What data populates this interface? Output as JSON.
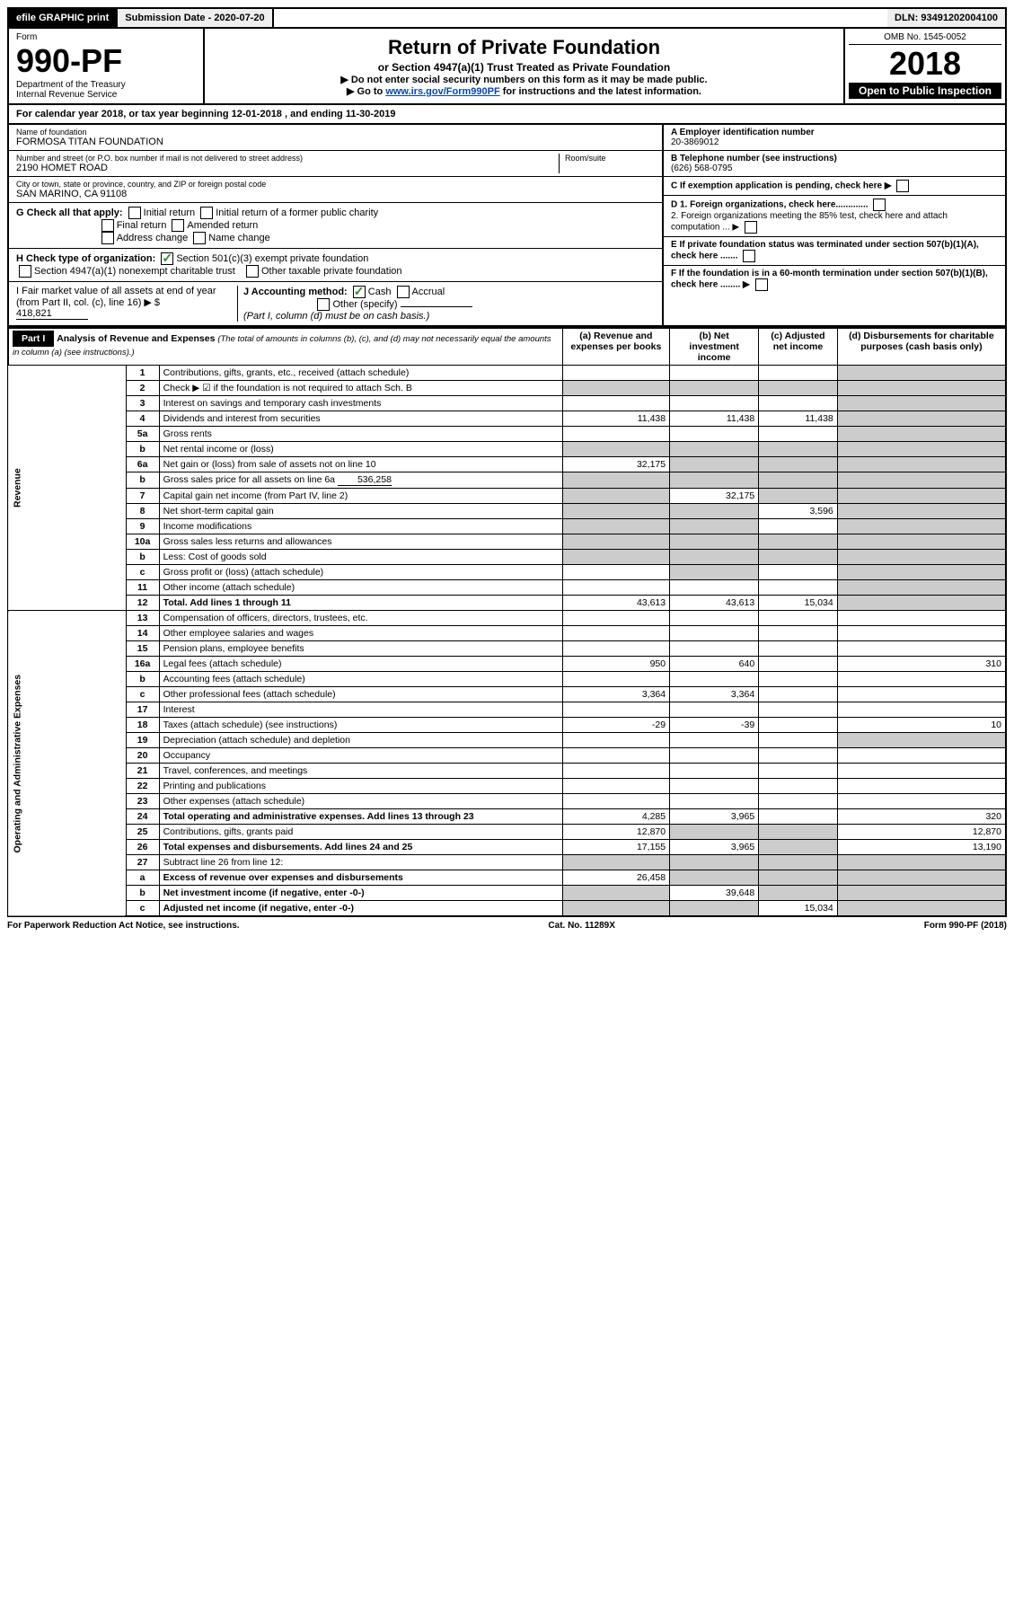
{
  "topbar": {
    "efile": "efile GRAPHIC print",
    "submission_label": "Submission Date - 2020-07-20",
    "dln": "DLN: 93491202004100"
  },
  "header": {
    "form_label": "Form",
    "form_no": "990-PF",
    "dept": "Department of the Treasury",
    "irs": "Internal Revenue Service",
    "title": "Return of Private Foundation",
    "subtitle": "or Section 4947(a)(1) Trust Treated as Private Foundation",
    "note1": "▶ Do not enter social security numbers on this form as it may be made public.",
    "note2_pre": "▶ Go to ",
    "note2_link": "www.irs.gov/Form990PF",
    "note2_post": " for instructions and the latest information.",
    "omb": "OMB No. 1545-0052",
    "year": "2018",
    "open": "Open to Public Inspection"
  },
  "calyear": {
    "text_pre": "For calendar year 2018, or tax year beginning ",
    "begin": "12-01-2018",
    "mid": " , and ending ",
    "end": "11-30-2019"
  },
  "entity": {
    "name_lbl": "Name of foundation",
    "name": "FORMOSA TITAN FOUNDATION",
    "addr_lbl": "Number and street (or P.O. box number if mail is not delivered to street address)",
    "addr": "2190 HOMET ROAD",
    "room_lbl": "Room/suite",
    "city_lbl": "City or town, state or province, country, and ZIP or foreign postal code",
    "city": "SAN MARINO, CA  91108",
    "ein_lbl": "A Employer identification number",
    "ein": "20-3869012",
    "tel_lbl": "B Telephone number (see instructions)",
    "tel": "(626) 568-0795",
    "c_lbl": "C If exemption application is pending, check here ▶",
    "d1_lbl": "D 1. Foreign organizations, check here.............",
    "d2_lbl": "2. Foreign organizations meeting the 85% test, check here and attach computation ... ▶",
    "e_lbl": "E If private foundation status was terminated under section 507(b)(1)(A), check here .......",
    "f_lbl": "F If the foundation is in a 60-month termination under section 507(b)(1)(B), check here ........ ▶"
  },
  "g": {
    "label": "G Check all that apply:",
    "opts": [
      "Initial return",
      "Initial return of a former public charity",
      "Final return",
      "Amended return",
      "Address change",
      "Name change"
    ]
  },
  "h": {
    "label": "H Check type of organization:",
    "o1": "Section 501(c)(3) exempt private foundation",
    "o2": "Section 4947(a)(1) nonexempt charitable trust",
    "o3": "Other taxable private foundation"
  },
  "i": {
    "label": "I Fair market value of all assets at end of year (from Part II, col. (c), line 16) ▶ $",
    "value": "418,821"
  },
  "j": {
    "label": "J Accounting method:",
    "cash": "Cash",
    "accrual": "Accrual",
    "other": "Other (specify)",
    "note": "(Part I, column (d) must be on cash basis.)"
  },
  "part1": {
    "hdr": "Part I",
    "title": "Analysis of Revenue and Expenses",
    "title_note": "(The total of amounts in columns (b), (c), and (d) may not necessarily equal the amounts in column (a) (see instructions).)",
    "cols": {
      "a": "(a) Revenue and expenses per books",
      "b": "(b) Net investment income",
      "c": "(c) Adjusted net income",
      "d": "(d) Disbursements for charitable purposes (cash basis only)"
    },
    "vlabels": {
      "rev": "Revenue",
      "exp": "Operating and Administrative Expenses"
    },
    "lines": [
      {
        "no": "1",
        "desc": "Contributions, gifts, grants, etc., received (attach schedule)",
        "a": "",
        "b": "",
        "c": "",
        "d": "",
        "d_shaded": true
      },
      {
        "no": "2",
        "desc": "Check ▶ ☑ if the foundation is not required to attach Sch. B",
        "full": true,
        "d_shaded": true
      },
      {
        "no": "3",
        "desc": "Interest on savings and temporary cash investments",
        "a": "",
        "b": "",
        "c": "",
        "d": "",
        "d_shaded": true
      },
      {
        "no": "4",
        "desc": "Dividends and interest from securities",
        "a": "11,438",
        "b": "11,438",
        "c": "11,438",
        "d": "",
        "d_shaded": true
      },
      {
        "no": "5a",
        "desc": "Gross rents",
        "a": "",
        "b": "",
        "c": "",
        "d": "",
        "d_shaded": true
      },
      {
        "no": "b",
        "desc": "Net rental income or (loss)",
        "full": true,
        "d_shaded": true
      },
      {
        "no": "6a",
        "desc": "Net gain or (loss) from sale of assets not on line 10",
        "a": "32,175",
        "b": "",
        "c": "",
        "d": "",
        "b_shaded": true,
        "c_shaded": true,
        "d_shaded": true
      },
      {
        "no": "b",
        "desc": "Gross sales price for all assets on line 6a",
        "inline_val": "536,258",
        "full": true,
        "d_shaded": true
      },
      {
        "no": "7",
        "desc": "Capital gain net income (from Part IV, line 2)",
        "a": "",
        "b": "32,175",
        "c": "",
        "d": "",
        "a_shaded": true,
        "c_shaded": true,
        "d_shaded": true
      },
      {
        "no": "8",
        "desc": "Net short-term capital gain",
        "a": "",
        "b": "",
        "c": "3,596",
        "d": "",
        "a_shaded": true,
        "b_shaded": true,
        "d_shaded": true
      },
      {
        "no": "9",
        "desc": "Income modifications",
        "a": "",
        "b": "",
        "c": "",
        "d": "",
        "a_shaded": true,
        "b_shaded": true,
        "d_shaded": true
      },
      {
        "no": "10a",
        "desc": "Gross sales less returns and allowances",
        "full": true,
        "d_shaded": true
      },
      {
        "no": "b",
        "desc": "Less: Cost of goods sold",
        "full": true,
        "d_shaded": true
      },
      {
        "no": "c",
        "desc": "Gross profit or (loss) (attach schedule)",
        "a": "",
        "b": "",
        "c": "",
        "d": "",
        "b_shaded": true,
        "d_shaded": true
      },
      {
        "no": "11",
        "desc": "Other income (attach schedule)",
        "a": "",
        "b": "",
        "c": "",
        "d": "",
        "d_shaded": true
      },
      {
        "no": "12",
        "desc": "Total. Add lines 1 through 11",
        "bold": true,
        "a": "43,613",
        "b": "43,613",
        "c": "15,034",
        "d": "",
        "d_shaded": true
      },
      {
        "no": "13",
        "desc": "Compensation of officers, directors, trustees, etc.",
        "a": "",
        "b": "",
        "c": "",
        "d": ""
      },
      {
        "no": "14",
        "desc": "Other employee salaries and wages",
        "a": "",
        "b": "",
        "c": "",
        "d": ""
      },
      {
        "no": "15",
        "desc": "Pension plans, employee benefits",
        "a": "",
        "b": "",
        "c": "",
        "d": ""
      },
      {
        "no": "16a",
        "desc": "Legal fees (attach schedule)",
        "a": "950",
        "b": "640",
        "c": "",
        "d": "310"
      },
      {
        "no": "b",
        "desc": "Accounting fees (attach schedule)",
        "a": "",
        "b": "",
        "c": "",
        "d": ""
      },
      {
        "no": "c",
        "desc": "Other professional fees (attach schedule)",
        "a": "3,364",
        "b": "3,364",
        "c": "",
        "d": ""
      },
      {
        "no": "17",
        "desc": "Interest",
        "a": "",
        "b": "",
        "c": "",
        "d": ""
      },
      {
        "no": "18",
        "desc": "Taxes (attach schedule) (see instructions)",
        "a": "-29",
        "b": "-39",
        "c": "",
        "d": "10"
      },
      {
        "no": "19",
        "desc": "Depreciation (attach schedule) and depletion",
        "a": "",
        "b": "",
        "c": "",
        "d": "",
        "d_shaded": true
      },
      {
        "no": "20",
        "desc": "Occupancy",
        "a": "",
        "b": "",
        "c": "",
        "d": ""
      },
      {
        "no": "21",
        "desc": "Travel, conferences, and meetings",
        "a": "",
        "b": "",
        "c": "",
        "d": ""
      },
      {
        "no": "22",
        "desc": "Printing and publications",
        "a": "",
        "b": "",
        "c": "",
        "d": ""
      },
      {
        "no": "23",
        "desc": "Other expenses (attach schedule)",
        "a": "",
        "b": "",
        "c": "",
        "d": ""
      },
      {
        "no": "24",
        "desc": "Total operating and administrative expenses. Add lines 13 through 23",
        "bold": true,
        "a": "4,285",
        "b": "3,965",
        "c": "",
        "d": "320"
      },
      {
        "no": "25",
        "desc": "Contributions, gifts, grants paid",
        "a": "12,870",
        "b": "",
        "c": "",
        "d": "12,870",
        "b_shaded": true,
        "c_shaded": true
      },
      {
        "no": "26",
        "desc": "Total expenses and disbursements. Add lines 24 and 25",
        "bold": true,
        "a": "17,155",
        "b": "3,965",
        "c": "",
        "d": "13,190",
        "c_shaded": true
      },
      {
        "no": "27",
        "desc": "Subtract line 26 from line 12:",
        "full": true
      },
      {
        "no": "a",
        "desc": "Excess of revenue over expenses and disbursements",
        "bold": true,
        "a": "26,458",
        "b": "",
        "c": "",
        "d": "",
        "b_shaded": true,
        "c_shaded": true,
        "d_shaded": true
      },
      {
        "no": "b",
        "desc": "Net investment income (if negative, enter -0-)",
        "bold": true,
        "a": "",
        "b": "39,648",
        "c": "",
        "d": "",
        "a_shaded": true,
        "c_shaded": true,
        "d_shaded": true
      },
      {
        "no": "c",
        "desc": "Adjusted net income (if negative, enter -0-)",
        "bold": true,
        "a": "",
        "b": "",
        "c": "15,034",
        "d": "",
        "a_shaded": true,
        "b_shaded": true,
        "d_shaded": true
      }
    ]
  },
  "footer": {
    "left": "For Paperwork Reduction Act Notice, see instructions.",
    "mid": "Cat. No. 11289X",
    "right": "Form 990-PF (2018)"
  }
}
